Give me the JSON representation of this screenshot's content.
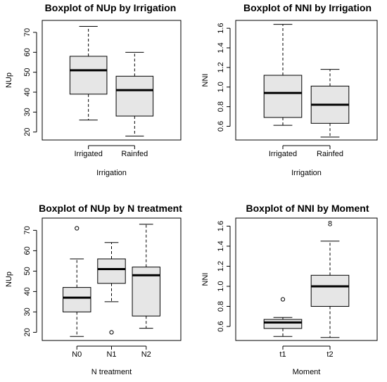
{
  "chart_data": [
    {
      "type": "boxplot",
      "title": "Boxplot of NUp by Irrigation",
      "xlabel": "Irrigation",
      "ylabel": "NUp",
      "categories": [
        "Irrigated",
        "Rainfed"
      ],
      "yticks": [
        20,
        30,
        40,
        50,
        60,
        70
      ],
      "ylim": [
        16,
        76
      ],
      "box_color": "#e6e6e6",
      "boxes": [
        {
          "whisker_low": 26,
          "q1": 39,
          "median": 51,
          "q3": 58,
          "whisker_high": 73,
          "outliers": []
        },
        {
          "whisker_low": 18,
          "q1": 28,
          "median": 41,
          "q3": 48,
          "whisker_high": 60,
          "outliers": []
        }
      ]
    },
    {
      "type": "boxplot",
      "title": "Boxplot of NNI by Irrigation",
      "xlabel": "Irrigation",
      "ylabel": "NNI",
      "categories": [
        "Irrigated",
        "Rainfed"
      ],
      "yticks": [
        0.6,
        0.8,
        1.0,
        1.2,
        1.4,
        1.6
      ],
      "ytick_labels": [
        "0.6",
        "0.8",
        "1.0",
        "1.2",
        "1.4",
        "1.6"
      ],
      "ylim": [
        0.46,
        1.68
      ],
      "box_color": "#e6e6e6",
      "boxes": [
        {
          "whisker_low": 0.61,
          "q1": 0.69,
          "median": 0.94,
          "q3": 1.12,
          "whisker_high": 1.64,
          "outliers": []
        },
        {
          "whisker_low": 0.49,
          "q1": 0.63,
          "median": 0.82,
          "q3": 1.01,
          "whisker_high": 1.18,
          "outliers": []
        }
      ]
    },
    {
      "type": "boxplot",
      "title": "Boxplot of NUp by N treatment",
      "xlabel": "N treatment",
      "ylabel": "NUp",
      "categories": [
        "N0",
        "N1",
        "N2"
      ],
      "yticks": [
        20,
        30,
        40,
        50,
        60,
        70
      ],
      "ylim": [
        16,
        76
      ],
      "box_color": "#e6e6e6",
      "boxes": [
        {
          "whisker_low": 18,
          "q1": 30,
          "median": 37,
          "q3": 42,
          "whisker_high": 56,
          "outliers": [
            71
          ]
        },
        {
          "whisker_low": 35,
          "q1": 44,
          "median": 51,
          "q3": 56,
          "whisker_high": 64,
          "outliers": [
            20
          ]
        },
        {
          "whisker_low": 22,
          "q1": 28,
          "median": 48,
          "q3": 52,
          "whisker_high": 73,
          "outliers": []
        }
      ]
    },
    {
      "type": "boxplot",
      "title": "Boxplot of NNI by Moment",
      "xlabel": "Moment",
      "ylabel": "NNI",
      "categories": [
        "t1",
        "t2"
      ],
      "yticks": [
        0.6,
        0.8,
        1.0,
        1.2,
        1.4,
        1.6
      ],
      "ytick_labels": [
        "0.6",
        "0.8",
        "1.0",
        "1.2",
        "1.4",
        "1.6"
      ],
      "ylim": [
        0.46,
        1.68
      ],
      "box_color": "#e6e6e6",
      "boxes": [
        {
          "whisker_low": 0.5,
          "q1": 0.58,
          "median": 0.64,
          "q3": 0.67,
          "whisker_high": 0.69,
          "outliers": [
            0.87
          ]
        },
        {
          "whisker_low": 0.49,
          "q1": 0.8,
          "median": 1.0,
          "q3": 1.11,
          "whisker_high": 1.45,
          "outliers": [],
          "annotation": {
            "text": "8",
            "y": 1.62
          }
        }
      ]
    }
  ]
}
